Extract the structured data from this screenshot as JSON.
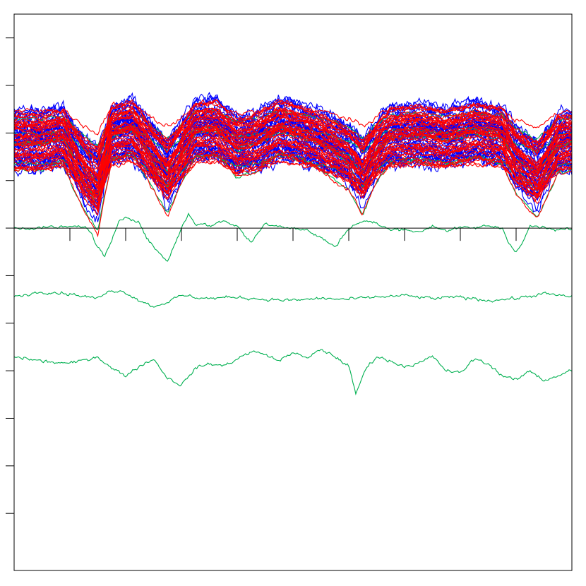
{
  "chart_data": {
    "type": "line",
    "title": "",
    "xlabel": "",
    "ylabel": "",
    "grid": false,
    "legend": "none",
    "x_range": [
      0,
      400
    ],
    "y_range": [
      -7.2,
      4.5
    ],
    "y_ticks": [
      -6,
      -5,
      -4,
      -3,
      -2,
      -1,
      0,
      1,
      2,
      3,
      4
    ],
    "x_ticks_on_zero_axis": [
      40,
      80,
      120,
      160,
      200,
      240,
      280,
      320,
      360
    ],
    "colors": {
      "blue": "#0000ff",
      "red": "#ff0000",
      "green": "#00b050",
      "axis": "#000000"
    },
    "band": {
      "x_start": 0,
      "x_end": 400,
      "center": 2.35,
      "spread": 1.2,
      "blue_count": 45,
      "red_count": 45,
      "green_count": 6,
      "profile_x": [
        0,
        20,
        35,
        50,
        60,
        70,
        85,
        100,
        110,
        120,
        130,
        145,
        160,
        175,
        190,
        205,
        220,
        240,
        250,
        255,
        262,
        270,
        290,
        310,
        330,
        350,
        360,
        375,
        390,
        400
      ],
      "profile_y": [
        0.1,
        0.1,
        0.2,
        -0.5,
        -0.8,
        0.25,
        0.35,
        -0.2,
        -0.55,
        -0.1,
        0.3,
        0.35,
        0.0,
        0.1,
        0.35,
        0.25,
        0.1,
        -0.2,
        -0.55,
        -0.3,
        0.0,
        0.2,
        0.25,
        0.15,
        0.3,
        0.2,
        -0.25,
        -0.6,
        0.05,
        0.1
      ]
    },
    "series": [
      {
        "color": "green",
        "x": [
          0,
          40,
          50,
          55,
          60,
          65,
          70,
          75,
          80,
          85,
          90,
          95,
          100,
          110,
          115,
          120,
          125,
          130,
          140,
          150,
          160,
          165,
          170,
          180,
          190,
          200,
          210,
          220,
          230,
          240,
          250,
          260,
          270,
          280,
          290,
          300,
          310,
          320,
          330,
          340,
          350,
          355,
          360,
          365,
          370,
          380,
          390,
          400
        ],
        "y": [
          0.0,
          0.02,
          0.05,
          -0.1,
          -0.4,
          -0.6,
          -0.3,
          0.15,
          0.25,
          0.2,
          0.1,
          -0.2,
          -0.4,
          -0.7,
          -0.35,
          0.0,
          0.3,
          0.1,
          0.05,
          0.15,
          0.05,
          -0.15,
          -0.3,
          0.1,
          0.05,
          0.0,
          -0.05,
          -0.2,
          -0.4,
          0.0,
          0.15,
          0.1,
          -0.05,
          0.0,
          -0.1,
          0.05,
          -0.05,
          0.0,
          0.0,
          0.05,
          0.0,
          -0.3,
          -0.5,
          -0.3,
          0.05,
          0.0,
          -0.05,
          0.0
        ]
      },
      {
        "color": "green",
        "x": [
          0,
          20,
          40,
          60,
          70,
          80,
          90,
          100,
          110,
          120,
          140,
          160,
          180,
          200,
          220,
          240,
          260,
          280,
          300,
          320,
          340,
          360,
          380,
          400
        ],
        "y": [
          -1.45,
          -1.33,
          -1.38,
          -1.48,
          -1.3,
          -1.35,
          -1.52,
          -1.65,
          -1.55,
          -1.42,
          -1.48,
          -1.45,
          -1.5,
          -1.52,
          -1.48,
          -1.5,
          -1.45,
          -1.42,
          -1.48,
          -1.45,
          -1.52,
          -1.48,
          -1.38,
          -1.45
        ]
      },
      {
        "color": "green",
        "x": [
          0,
          20,
          40,
          60,
          70,
          80,
          90,
          100,
          110,
          120,
          130,
          140,
          150,
          160,
          170,
          180,
          190,
          200,
          210,
          220,
          230,
          240,
          245,
          250,
          255,
          260,
          270,
          280,
          290,
          300,
          310,
          320,
          330,
          340,
          350,
          360,
          370,
          380,
          390,
          400
        ],
        "y": [
          -2.7,
          -2.8,
          -2.85,
          -2.7,
          -2.95,
          -3.1,
          -2.9,
          -2.75,
          -3.15,
          -3.3,
          -2.95,
          -2.85,
          -2.9,
          -2.75,
          -2.6,
          -2.65,
          -2.8,
          -2.6,
          -2.75,
          -2.55,
          -2.7,
          -2.9,
          -3.5,
          -3.1,
          -2.85,
          -2.7,
          -2.8,
          -2.9,
          -2.85,
          -2.7,
          -3.0,
          -3.05,
          -2.75,
          -2.85,
          -3.1,
          -3.2,
          -3.0,
          -3.2,
          -3.1,
          -3.0
        ]
      }
    ]
  }
}
